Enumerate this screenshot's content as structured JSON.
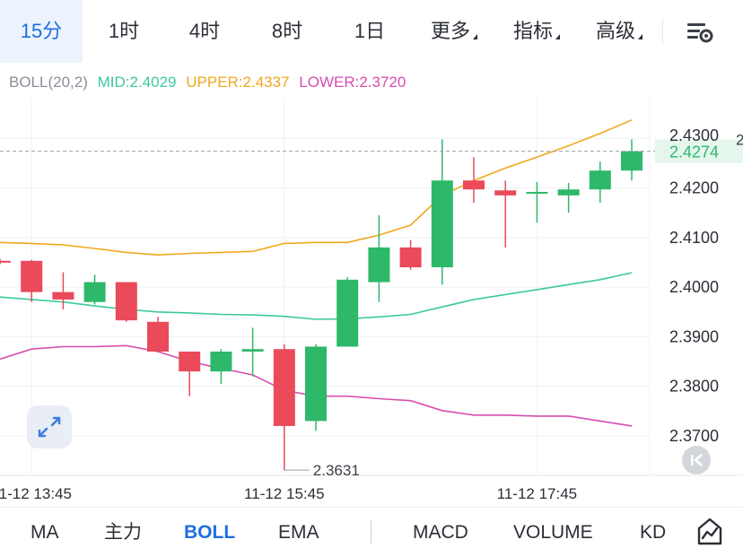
{
  "timeframe_tabs": [
    {
      "label": "15分",
      "active": true,
      "dropdown": false
    },
    {
      "label": "1时",
      "active": false,
      "dropdown": false
    },
    {
      "label": "4时",
      "active": false,
      "dropdown": false
    },
    {
      "label": "8时",
      "active": false,
      "dropdown": false
    },
    {
      "label": "1日",
      "active": false,
      "dropdown": false
    },
    {
      "label": "更多",
      "active": false,
      "dropdown": true
    },
    {
      "label": "指标",
      "active": false,
      "dropdown": true
    },
    {
      "label": "高级",
      "active": false,
      "dropdown": true
    }
  ],
  "legend": {
    "name": "BOLL(20,2)",
    "mid": "MID:2.4029",
    "upper": "UPPER:2.4337",
    "lower": "LOWER:2.3720"
  },
  "colors": {
    "up": "#2eb86a",
    "down": "#ea4a5a",
    "mid": "#3cc8a0",
    "upper": "#f0a81c",
    "lower": "#d94cb0",
    "accent": "#1f6fe0",
    "price_tag": "#2eb86a"
  },
  "chart_data": {
    "type": "candlestick",
    "indicator": "BOLL(20,2)",
    "x_tick_labels": [
      "11-12 13:45",
      "11-12 15:45",
      "11-12 17:45"
    ],
    "y_tick_labels": [
      "2.4300",
      "2.4200",
      "2.4100",
      "2.4000",
      "2.3900",
      "2.3800",
      "2.3700"
    ],
    "ylim": [
      2.3624,
      2.438
    ],
    "current_price": "2.4274",
    "max_label": "2.4298",
    "min_label": "2.3631",
    "candles": [
      {
        "o": 2.4053,
        "h": 2.4057,
        "l": 2.4046,
        "c": 2.4052
      },
      {
        "o": 2.4053,
        "h": 2.4055,
        "l": 2.397,
        "c": 2.399
      },
      {
        "o": 2.399,
        "h": 2.403,
        "l": 2.3955,
        "c": 2.3975
      },
      {
        "o": 2.397,
        "h": 2.4025,
        "l": 2.3965,
        "c": 2.401
      },
      {
        "o": 2.401,
        "h": 2.401,
        "l": 2.393,
        "c": 2.3933
      },
      {
        "o": 2.393,
        "h": 2.394,
        "l": 2.387,
        "c": 2.387
      },
      {
        "o": 2.387,
        "h": 2.387,
        "l": 2.378,
        "c": 2.383
      },
      {
        "o": 2.383,
        "h": 2.3875,
        "l": 2.3805,
        "c": 2.387
      },
      {
        "o": 2.387,
        "h": 2.3918,
        "l": 2.382,
        "c": 2.3875
      },
      {
        "o": 2.3875,
        "h": 2.3885,
        "l": 2.3631,
        "c": 2.372
      },
      {
        "o": 2.373,
        "h": 2.3885,
        "l": 2.371,
        "c": 2.388
      },
      {
        "o": 2.388,
        "h": 2.402,
        "l": 2.388,
        "c": 2.4015
      },
      {
        "o": 2.401,
        "h": 2.4145,
        "l": 2.397,
        "c": 2.408
      },
      {
        "o": 2.408,
        "h": 2.4095,
        "l": 2.4035,
        "c": 2.404
      },
      {
        "o": 2.404,
        "h": 2.4298,
        "l": 2.4005,
        "c": 2.4215
      },
      {
        "o": 2.4215,
        "h": 2.4262,
        "l": 2.417,
        "c": 2.4197
      },
      {
        "o": 2.4195,
        "h": 2.4215,
        "l": 2.408,
        "c": 2.4185
      },
      {
        "o": 2.419,
        "h": 2.4212,
        "l": 2.413,
        "c": 2.4192
      },
      {
        "o": 2.4185,
        "h": 2.421,
        "l": 2.415,
        "c": 2.4197
      },
      {
        "o": 2.4197,
        "h": 2.4253,
        "l": 2.417,
        "c": 2.4235
      },
      {
        "o": 2.4235,
        "h": 2.4298,
        "l": 2.4215,
        "c": 2.4274
      }
    ],
    "mid_line": [
      2.398,
      2.3975,
      2.397,
      2.3962,
      2.3955,
      2.395,
      2.3948,
      2.3945,
      2.3944,
      2.3941,
      2.3935,
      2.3936,
      2.394,
      2.3945,
      2.396,
      2.3975,
      2.3985,
      2.3995,
      2.4005,
      2.4015,
      2.4029
    ],
    "upper_line": [
      2.409,
      2.4088,
      2.4085,
      2.4078,
      2.407,
      2.4065,
      2.4068,
      2.407,
      2.4072,
      2.4088,
      2.409,
      2.409,
      2.4105,
      2.4125,
      2.4185,
      2.4215,
      2.424,
      2.4262,
      2.4285,
      2.431,
      2.4337
    ],
    "lower_line": [
      2.3855,
      2.3875,
      2.388,
      2.388,
      2.3882,
      2.387,
      2.385,
      2.3836,
      2.3823,
      2.3792,
      2.378,
      2.378,
      2.3775,
      2.3771,
      2.3751,
      2.3742,
      2.3742,
      2.374,
      2.374,
      2.373,
      2.372
    ]
  },
  "bottom_tabs": [
    {
      "label": "MA",
      "active": false
    },
    {
      "label": "主力",
      "active": false
    },
    {
      "label": "BOLL",
      "active": true
    },
    {
      "label": "EMA",
      "active": false
    },
    {
      "label": "MACD",
      "active": false
    },
    {
      "label": "VOLUME",
      "active": false
    },
    {
      "label": "KD",
      "active": false
    }
  ]
}
